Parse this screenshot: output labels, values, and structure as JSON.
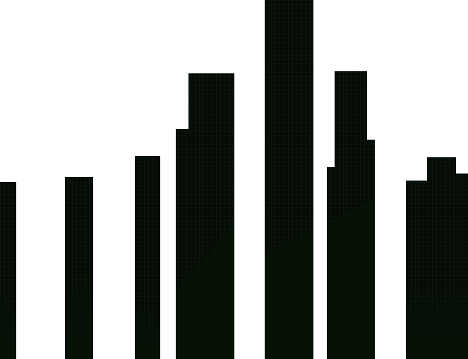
{
  "image": {
    "subject": "skyline-silhouette",
    "colors": {
      "background": "#ffffff",
      "building_dark": "#050c05",
      "building_base": "#061206",
      "window_grid": "#111811"
    }
  }
}
